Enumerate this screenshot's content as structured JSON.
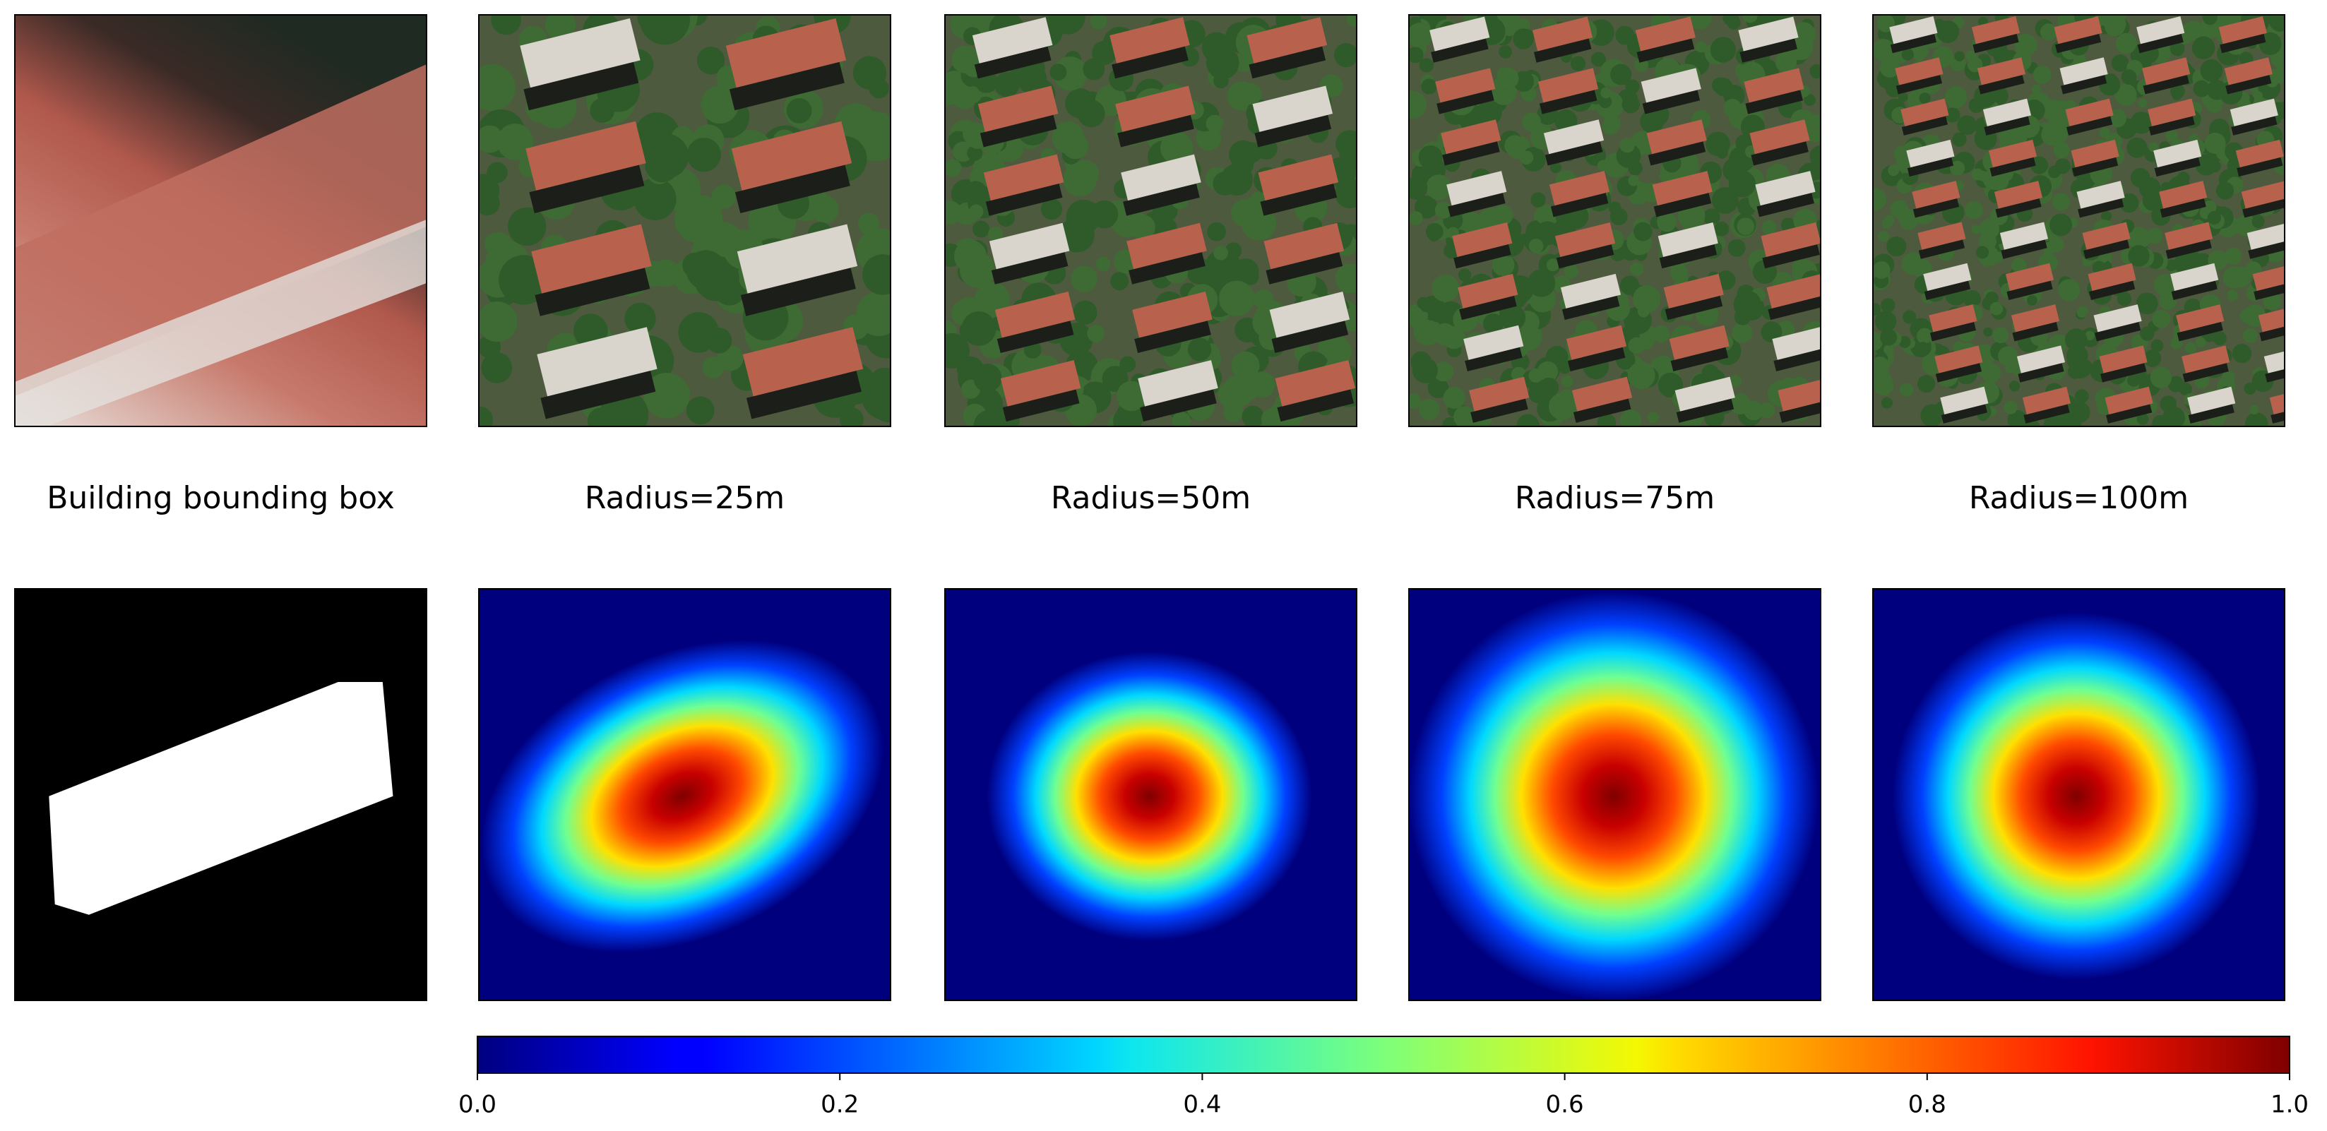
{
  "panels": {
    "labels": [
      "Building bounding box",
      "Radius=25m",
      "Radius=50m",
      "Radius=75m",
      "Radius=100m"
    ]
  },
  "colorbar": {
    "lim": [
      0,
      1
    ],
    "ticks": [
      {
        "value": 0,
        "label": "0.0"
      },
      0.2,
      0.4,
      0.6,
      0.8,
      {
        "value": 1,
        "label": "1.0"
      }
    ]
  }
}
